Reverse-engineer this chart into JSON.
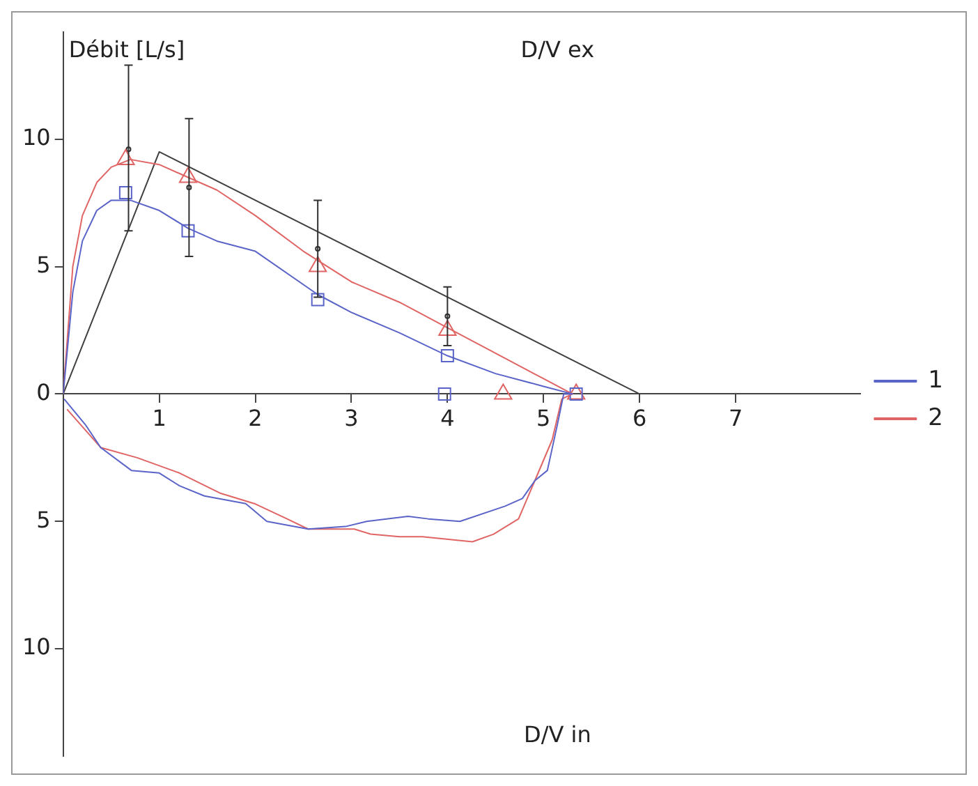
{
  "chart_data": {
    "type": "line",
    "ylabel": "Débit [L/s]",
    "annotations": [
      "D/V ex",
      "D/V in"
    ],
    "xlim": [
      0,
      8.3
    ],
    "xticks": [
      1,
      2,
      3,
      4,
      5,
      6,
      7
    ],
    "ylim": [
      -14.2,
      14.2
    ],
    "yticks": [
      {
        "value": -10,
        "label": "10"
      },
      {
        "value": -5,
        "label": "5"
      },
      0,
      5,
      10
    ],
    "grid": false,
    "legend": "right",
    "series": [
      {
        "name": "1",
        "color": "#5a64c8",
        "marker": "none",
        "x": [
          0,
          0.1,
          0.2,
          0.35,
          0.5,
          0.7,
          1,
          1.3,
          1.6,
          2,
          2.65,
          3,
          3.5,
          4,
          4.5,
          5,
          5.3,
          5.21,
          5.15,
          5.04,
          4.91,
          4.78,
          4.6,
          4.13,
          3.8,
          3.59,
          3.16,
          2.94,
          2.55,
          2.12,
          1.9,
          1.47,
          1.21,
          1.0,
          0.71,
          0.39,
          0.23,
          0.01
        ],
        "values": [
          0,
          4,
          6,
          7.2,
          7.6,
          7.6,
          7.2,
          6.5,
          6.0,
          5.6,
          3.9,
          3.2,
          2.4,
          1.5,
          0.8,
          0.3,
          0,
          0,
          -1.1,
          -3.0,
          -3.4,
          -4.1,
          -4.4,
          -5.0,
          -4.9,
          -4.8,
          -5.0,
          -5.2,
          -5.3,
          -5.0,
          -4.3,
          -4.0,
          -3.6,
          -3.1,
          -3.0,
          -2.1,
          -1.2,
          -0.2
        ]
      },
      {
        "name": "2",
        "color": "#e06464",
        "marker": "none",
        "x": [
          0,
          0.1,
          0.2,
          0.35,
          0.5,
          0.7,
          1,
          1.3,
          1.6,
          2,
          2.5,
          3,
          3.5,
          4,
          4.5,
          5,
          5.3,
          5.19,
          5.09,
          4.91,
          4.74,
          4.48,
          4.26,
          3.74,
          3.5,
          3.2,
          3.03,
          2.55,
          2.33,
          1.99,
          1.64,
          1.21,
          0.77,
          0.39,
          0.04
        ],
        "values": [
          0,
          5,
          7,
          8.3,
          8.9,
          9.2,
          9.0,
          8.5,
          8.0,
          7.0,
          5.6,
          4.4,
          3.6,
          2.6,
          1.6,
          0.6,
          0,
          -0.2,
          -1.8,
          -3.4,
          -4.9,
          -5.5,
          -5.8,
          -5.6,
          -5.6,
          -5.5,
          -5.3,
          -5.3,
          -4.9,
          -4.3,
          -3.9,
          -3.1,
          -2.5,
          -2.1,
          -0.6
        ]
      },
      {
        "type": "scatter",
        "color": "#5a64c8",
        "marker": "square",
        "x": [
          0.65,
          1.3,
          2.65,
          4,
          3.97,
          5.34
        ],
        "values": [
          7.9,
          6.4,
          3.7,
          1.5,
          0,
          0
        ]
      },
      {
        "type": "scatter",
        "color": "#e06464",
        "marker": "triangle",
        "x": [
          0.65,
          1.3,
          2.65,
          4,
          4.58,
          5.34
        ],
        "values": [
          9.2,
          8.5,
          5.0,
          2.5,
          0,
          0
        ]
      },
      {
        "color": "#404040",
        "marker": "none",
        "x": [
          0,
          1,
          6
        ],
        "values": [
          0,
          9.5,
          0
        ]
      },
      {
        "type": "scatter",
        "color": "#303030",
        "x": [
          0.68,
          1.31,
          2.65,
          4.0
        ],
        "values": [
          9.6,
          8.1,
          5.7,
          3.05
        ],
        "errors": [
          [
            6.4,
            12.9
          ],
          [
            5.4,
            10.8
          ],
          [
            3.8,
            7.6
          ],
          [
            1.9,
            4.2
          ]
        ]
      }
    ]
  }
}
